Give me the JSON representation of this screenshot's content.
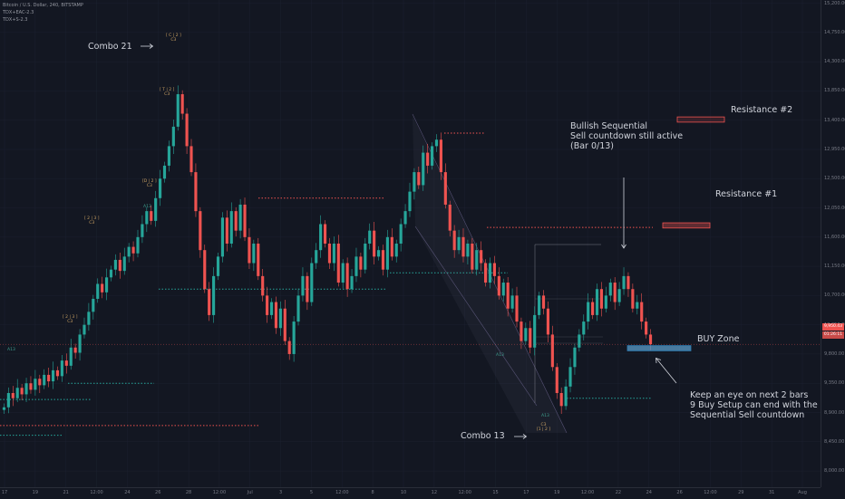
{
  "legend": {
    "symbol": "Bitcoin / U.S. Dollar, 240, BITSTAMP",
    "ind1": "TDX+EAC-2.3",
    "ind2": "TDX+S-2.3"
  },
  "annotations": {
    "combo21": "Combo 21",
    "combo13": "Combo 13",
    "bullish": "Bullish Sequential\nSell countdown still active\n(Bar 0/13)",
    "res1": "Resistance #1",
    "res2": "Resistance #2",
    "buy": "BUY Zone",
    "keep": "Keep an eye on next 2 bars\n9 Buy Setup can end with the\nSequential Sell countdown"
  },
  "price_boxes": {
    "current": "9,950.43",
    "countdown": "01:26:11"
  },
  "colors": {
    "bg": "#131722",
    "up": "#26a69a",
    "down": "#ef5350",
    "grid": "#1c2030"
  },
  "chart_data": {
    "type": "candlestick",
    "title": "Bitcoin / U.S. Dollar, 240, BITSTAMP",
    "price_ticks": [
      15200,
      14750,
      14300,
      13850,
      13400,
      12950,
      12500,
      12050,
      11600,
      11150,
      10700,
      10250,
      9800,
      9350,
      8900,
      8450,
      8000
    ],
    "time_ticks": [
      "17",
      "19",
      "21",
      "12:00",
      "24",
      "26",
      "28",
      "12:00",
      "Jul",
      "3",
      "5",
      "12:00",
      "8",
      "10",
      "12",
      "12:00",
      "15",
      "17",
      "19",
      "12:00",
      "22",
      "24",
      "26",
      "12:00",
      "29",
      "31",
      "Aug"
    ],
    "ylim": [
      7750,
      15250
    ],
    "closes": [
      8980,
      9200,
      9120,
      9280,
      9180,
      9350,
      9250,
      9420,
      9320,
      9480,
      9380,
      9550,
      9460,
      9700,
      9620,
      9900,
      9820,
      10100,
      10250,
      10450,
      10650,
      10880,
      10750,
      10980,
      11100,
      11250,
      11080,
      11300,
      11450,
      11350,
      11600,
      11800,
      12000,
      11850,
      12200,
      12500,
      12700,
      13000,
      13300,
      13800,
      13500,
      13000,
      12600,
      12000,
      11400,
      10800,
      10400,
      11000,
      11300,
      11900,
      11500,
      12000,
      11700,
      12100,
      11600,
      11200,
      11500,
      11000,
      10700,
      10400,
      10600,
      10200,
      10500,
      10000,
      9800,
      10300,
      10700,
      11000,
      10600,
      11200,
      11400,
      11800,
      11500,
      11200,
      11500,
      10900,
      11200,
      10800,
      11000,
      11300,
      11100,
      11500,
      11700,
      11300,
      11400,
      11100,
      11600,
      11300,
      11500,
      11800,
      12000,
      12300,
      12600,
      12400,
      12900,
      12700,
      13000,
      13100,
      12600,
      12100,
      11700,
      11400,
      11600,
      11300,
      11500,
      11100,
      11400,
      11200,
      10900,
      11200,
      11000,
      10700,
      10900,
      10500,
      10700,
      10300,
      10000,
      10200,
      9900,
      10400,
      10700,
      10500,
      10100,
      9600,
      9200,
      9000,
      9300,
      9600,
      9900,
      10100,
      10300,
      10600,
      10400,
      10800,
      10500,
      10700,
      10900,
      10600,
      10800,
      11000,
      10800,
      10500,
      10600,
      10300,
      10100,
      9950
    ],
    "levels": [
      {
        "price": 8700,
        "x0": 0,
        "x1": 285,
        "kind": "resistance"
      },
      {
        "price": 13200,
        "x0": 490,
        "x1": 535,
        "kind": "resistance"
      },
      {
        "price": 12200,
        "x0": 285,
        "x1": 425,
        "kind": "resistance"
      },
      {
        "price": 11750,
        "x0": 537,
        "x1": 720,
        "kind": "resistance"
      },
      {
        "price": 10800,
        "x0": 175,
        "x1": 425,
        "kind": "support"
      },
      {
        "price": 11050,
        "x0": 430,
        "x1": 560,
        "kind": "support"
      },
      {
        "price": 9350,
        "x0": 75,
        "x1": 170,
        "kind": "support"
      },
      {
        "price": 9100,
        "x0": 0,
        "x1": 100,
        "kind": "support"
      },
      {
        "price": 8550,
        "x0": 0,
        "x1": 70,
        "kind": "support"
      },
      {
        "price": 9120,
        "x0": 625,
        "x1": 718,
        "kind": "support"
      }
    ],
    "zones": [
      {
        "name": "Resistance #2",
        "low": 13370,
        "high": 13450
      },
      {
        "name": "Resistance #1",
        "low": 11740,
        "high": 11820
      },
      {
        "name": "BUY Zone",
        "low": 9850,
        "high": 9930
      }
    ],
    "markers": [
      "A13",
      "A13",
      "A13",
      "A13",
      "C13",
      "C13",
      "C13"
    ]
  }
}
